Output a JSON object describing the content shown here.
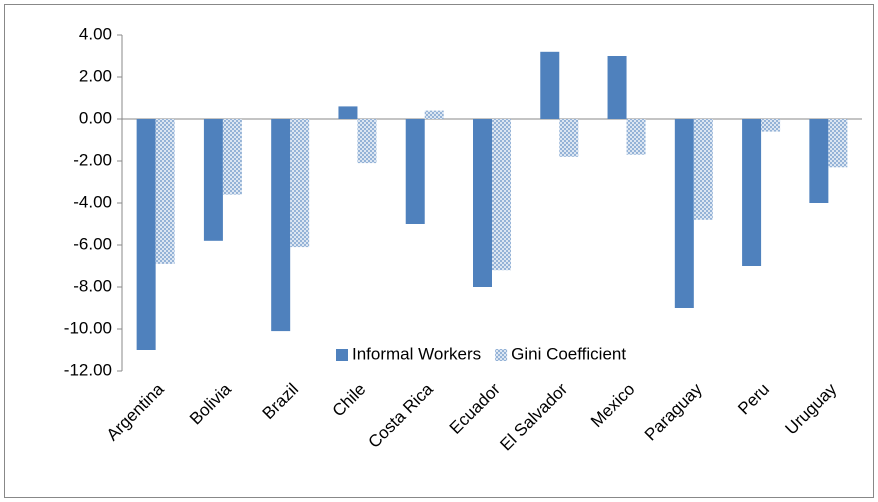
{
  "chart_data": {
    "type": "bar",
    "categories": [
      "Argentina",
      "Bolivia",
      "Brazil",
      "Chile",
      "Costa Rica",
      "Ecuador",
      "El Salvador",
      "Mexico",
      "Paraguay",
      "Peru",
      "Uruguay"
    ],
    "series": [
      {
        "name": "Informal Workers",
        "color": "#4f81bd",
        "fill_style": "solid",
        "values": [
          -11.0,
          -5.8,
          -10.1,
          0.6,
          -5.0,
          -8.0,
          3.2,
          3.0,
          -9.0,
          -7.0,
          -4.0
        ]
      },
      {
        "name": "Gini Coefficient",
        "color": "#95b3d7",
        "fill_style": "checker",
        "values": [
          -6.9,
          -3.6,
          -6.1,
          -2.1,
          0.4,
          -7.2,
          -1.8,
          -1.7,
          -4.8,
          -0.6,
          -2.3
        ]
      }
    ],
    "ylim": [
      -12,
      4
    ],
    "yticks": [
      {
        "value": -12,
        "label": "-12.00"
      },
      {
        "value": -10,
        "label": "-10.00"
      },
      {
        "value": -8,
        "label": "-8.00"
      },
      {
        "value": -6,
        "label": "-6.00"
      },
      {
        "value": -4,
        "label": "-4.00"
      },
      {
        "value": -2,
        "label": "-2.00"
      },
      {
        "value": 0,
        "label": "0.00"
      },
      {
        "value": 2,
        "label": "2.00"
      },
      {
        "value": 4,
        "label": "4.00"
      }
    ],
    "grid": false,
    "legend": "bottom-right"
  }
}
